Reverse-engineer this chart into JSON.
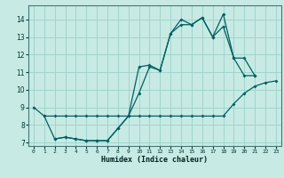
{
  "xlabel": "Humidex (Indice chaleur)",
  "xlim": [
    -0.5,
    23.5
  ],
  "ylim": [
    6.8,
    14.8
  ],
  "yticks": [
    7,
    8,
    9,
    10,
    11,
    12,
    13,
    14
  ],
  "xticks": [
    0,
    1,
    2,
    3,
    4,
    5,
    6,
    7,
    8,
    9,
    10,
    11,
    12,
    13,
    14,
    15,
    16,
    17,
    18,
    19,
    20,
    21,
    22,
    23
  ],
  "bg_color": "#c8eae4",
  "grid_color": "#a0d4cc",
  "line_color": "#006060",
  "lines": [
    {
      "x": [
        0,
        1,
        2,
        3,
        4,
        5,
        6,
        7,
        8,
        9,
        10,
        11,
        12,
        13,
        14,
        15,
        16,
        17,
        18,
        19,
        20,
        21,
        22,
        23
      ],
      "y": [
        9.0,
        8.5,
        8.5,
        8.5,
        8.5,
        8.5,
        8.5,
        8.5,
        8.5,
        8.5,
        8.5,
        8.5,
        8.5,
        8.5,
        8.5,
        8.5,
        8.5,
        8.5,
        8.5,
        9.2,
        9.8,
        10.2,
        10.4,
        10.5
      ]
    },
    {
      "x": [
        1,
        2,
        3,
        4,
        5,
        6,
        7,
        8,
        9,
        10,
        11,
        12,
        13,
        14,
        15,
        16,
        17,
        18,
        19,
        20,
        21
      ],
      "y": [
        8.5,
        7.2,
        7.3,
        7.2,
        7.1,
        7.1,
        7.1,
        7.8,
        8.5,
        9.8,
        11.3,
        11.1,
        13.2,
        13.7,
        13.7,
        14.1,
        13.0,
        13.6,
        11.8,
        10.8,
        10.8
      ]
    },
    {
      "x": [
        2,
        3,
        4,
        5,
        6,
        7,
        8,
        9,
        10,
        11,
        12,
        13,
        14,
        15,
        16,
        17,
        18,
        19,
        20,
        21
      ],
      "y": [
        7.2,
        7.3,
        7.2,
        7.1,
        7.1,
        7.1,
        7.8,
        8.5,
        11.3,
        11.4,
        11.1,
        13.2,
        14.0,
        13.7,
        14.1,
        13.0,
        14.3,
        11.8,
        11.8,
        10.8
      ]
    }
  ]
}
